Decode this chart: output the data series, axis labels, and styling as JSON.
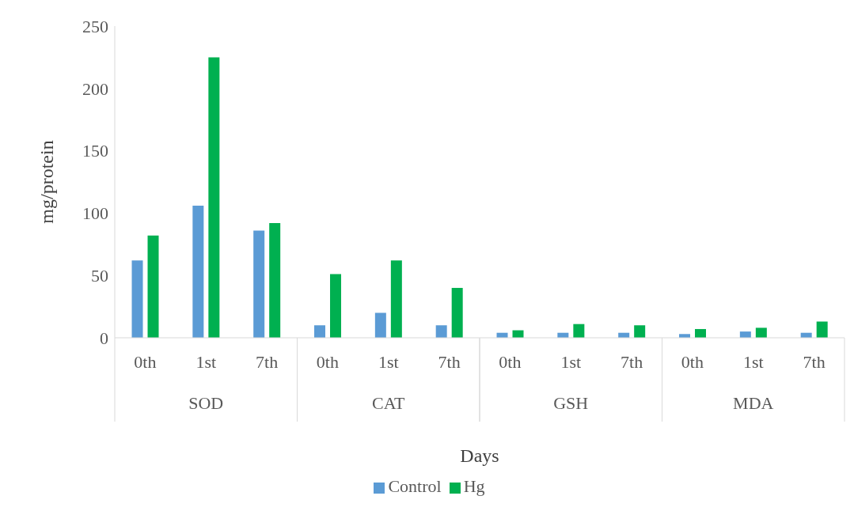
{
  "chart_data": {
    "type": "bar",
    "xlabel": "Days",
    "ylabel": "mg/protein",
    "categories": [
      "0th",
      "1st",
      "7th",
      "0th",
      "1st",
      "7th",
      "0th",
      "1st",
      "7th",
      "0th",
      "1st",
      "7th"
    ],
    "annotations": [
      "SOD",
      "CAT",
      "GSH",
      "MDA"
    ],
    "series": [
      {
        "name": "Control",
        "color": "#5b9bd5",
        "values": [
          62,
          106,
          86,
          10,
          20,
          10,
          4,
          4,
          4,
          3,
          5,
          4
        ]
      },
      {
        "name": "Hg",
        "color": "#00b050",
        "values": [
          82,
          225,
          92,
          51,
          62,
          40,
          6,
          11,
          10,
          7,
          8,
          13
        ]
      }
    ],
    "ylim": [
      0,
      250
    ],
    "yticks": [
      0,
      50,
      100,
      150,
      200,
      250
    ],
    "grid": false,
    "legend": "bottom"
  }
}
